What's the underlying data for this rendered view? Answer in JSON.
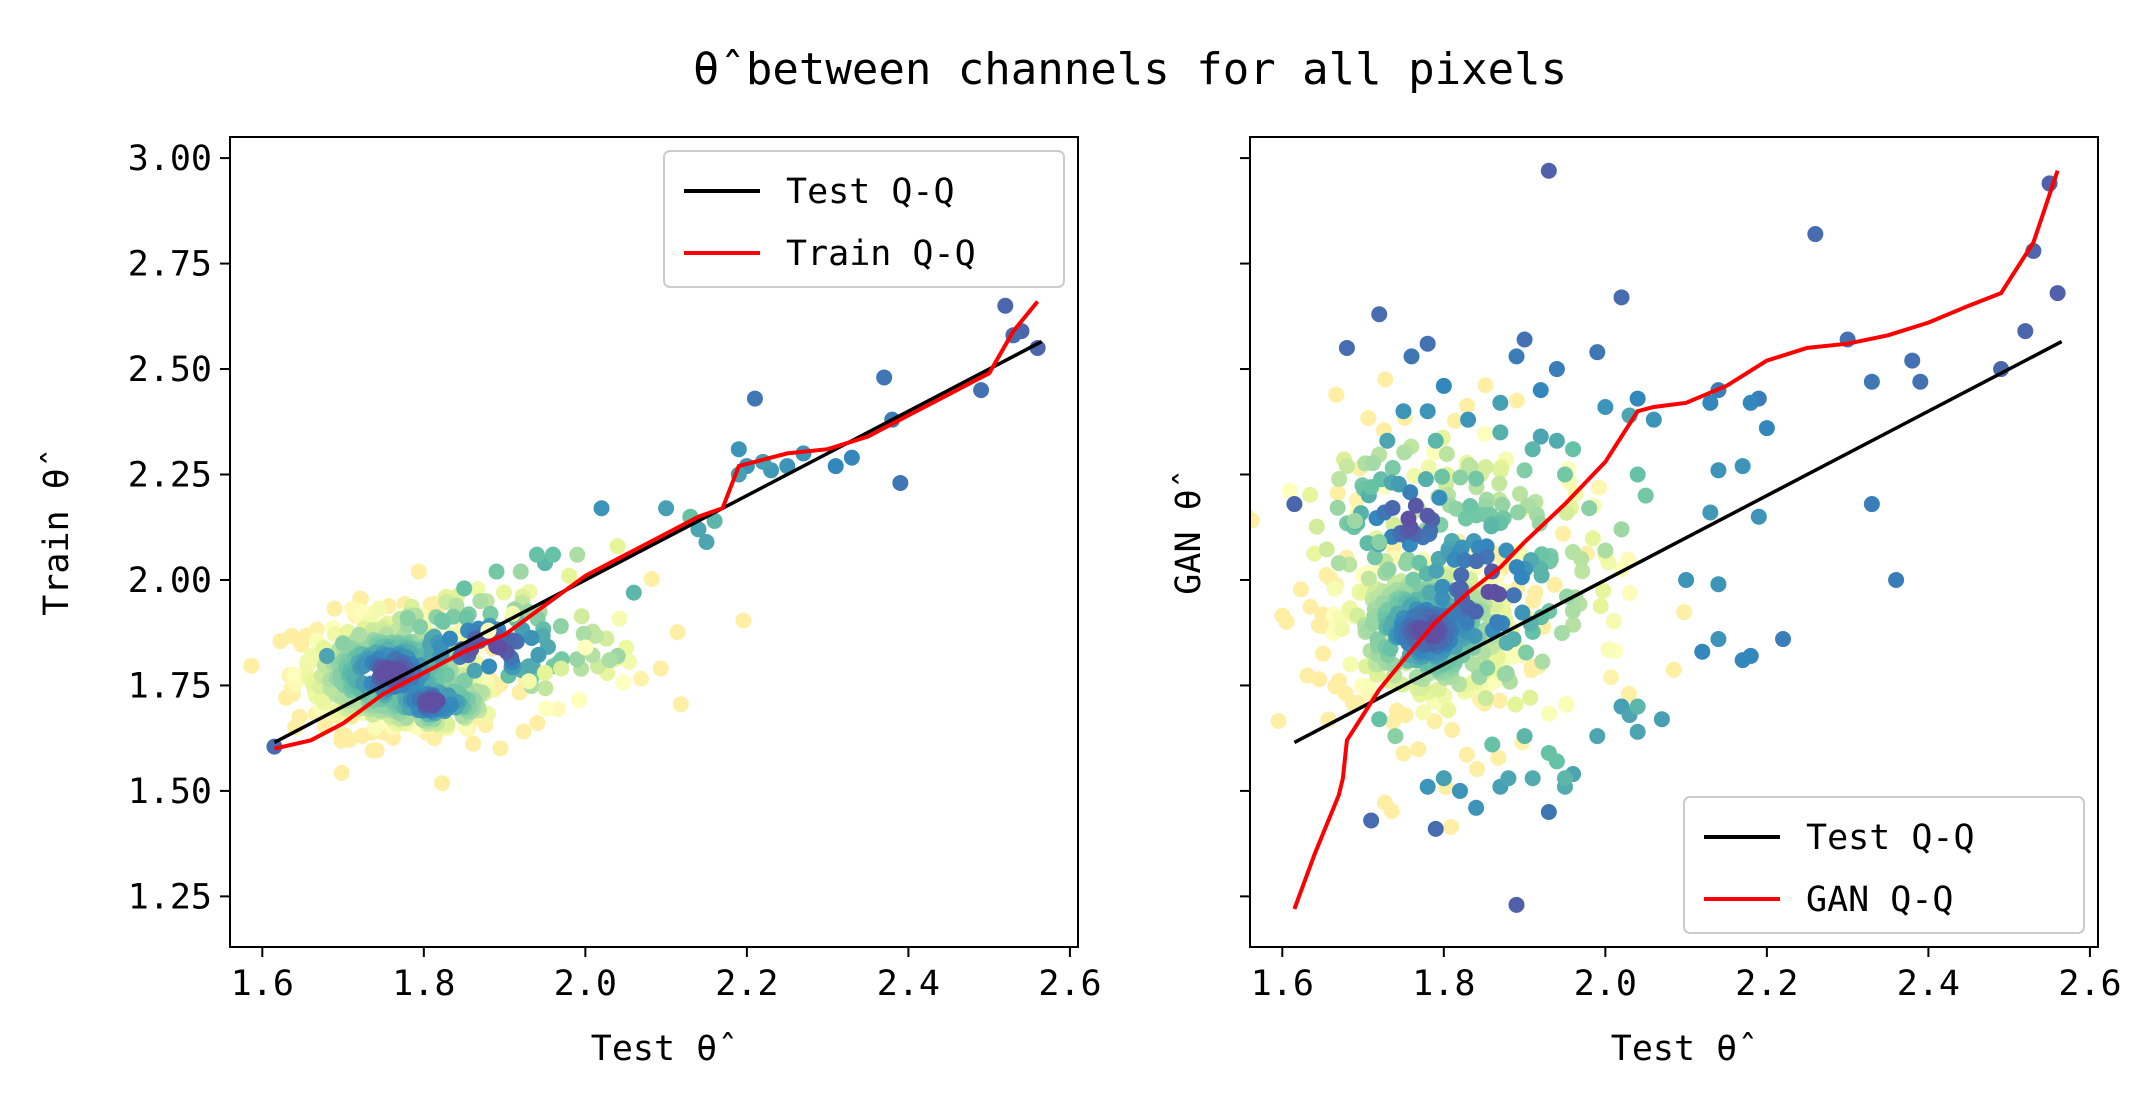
{
  "figure": {
    "title": "θ̂ between channels for all pixels"
  },
  "chart_data": [
    {
      "type": "scatter",
      "xlabel": "Test θ̂",
      "ylabel": "Train θ̂",
      "xlim": [
        1.56,
        2.61
      ],
      "ylim": [
        1.13,
        3.05
      ],
      "xticks": [
        "1.6",
        "1.8",
        "2.0",
        "2.2",
        "2.4",
        "2.6"
      ],
      "yticks": [
        "1.25",
        "1.50",
        "1.75",
        "2.00",
        "2.25",
        "2.50",
        "2.75",
        "3.00"
      ],
      "legend_position": "top-right",
      "legend": [
        "Test Q-Q",
        "Train Q-Q"
      ],
      "reference_line": {
        "name": "Test Q-Q",
        "color": "#000000",
        "x": [
          1.615,
          2.565
        ],
        "y": [
          1.615,
          2.565
        ]
      },
      "qq_line": {
        "name": "Train Q-Q",
        "color": "#ff0000",
        "x": [
          1.615,
          1.66,
          1.7,
          1.75,
          1.8,
          1.85,
          1.9,
          1.95,
          2.0,
          2.05,
          2.1,
          2.14,
          2.17,
          2.19,
          2.21,
          2.25,
          2.3,
          2.35,
          2.4,
          2.45,
          2.5,
          2.53,
          2.56
        ],
        "y": [
          1.6,
          1.62,
          1.66,
          1.73,
          1.78,
          1.83,
          1.87,
          1.94,
          2.01,
          2.06,
          2.11,
          2.15,
          2.17,
          2.27,
          2.28,
          2.3,
          2.31,
          2.34,
          2.39,
          2.44,
          2.49,
          2.59,
          2.66
        ]
      },
      "points": [
        [
          1.615,
          1.605,
          0.95
        ],
        [
          1.68,
          1.82,
          0.85
        ],
        [
          1.7,
          1.85,
          0.75
        ],
        [
          1.72,
          1.87,
          0.7
        ],
        [
          1.78,
          1.91,
          0.75
        ],
        [
          1.85,
          1.98,
          0.8
        ],
        [
          1.87,
          1.95,
          0.7
        ],
        [
          1.89,
          2.02,
          0.78
        ],
        [
          1.92,
          2.02,
          0.72
        ],
        [
          1.94,
          2.06,
          0.8
        ],
        [
          1.95,
          2.04,
          0.82
        ],
        [
          1.96,
          2.06,
          0.8
        ],
        [
          1.99,
          2.06,
          0.7
        ],
        [
          2.02,
          2.17,
          0.88
        ],
        [
          2.04,
          2.08,
          0.6
        ],
        [
          2.03,
          1.81,
          0.7
        ],
        [
          2.04,
          1.82,
          0.72
        ],
        [
          2.06,
          1.97,
          0.82
        ],
        [
          2.1,
          2.17,
          0.86
        ],
        [
          2.13,
          2.15,
          0.8
        ],
        [
          2.14,
          2.12,
          0.85
        ],
        [
          2.15,
          2.09,
          0.85
        ],
        [
          2.16,
          2.14,
          0.82
        ],
        [
          2.19,
          2.31,
          0.88
        ],
        [
          2.19,
          2.25,
          0.86
        ],
        [
          2.2,
          2.27,
          0.88
        ],
        [
          2.21,
          2.43,
          0.93
        ],
        [
          2.22,
          2.28,
          0.86
        ],
        [
          2.23,
          2.26,
          0.87
        ],
        [
          2.25,
          2.27,
          0.88
        ],
        [
          2.27,
          2.3,
          0.88
        ],
        [
          2.31,
          2.27,
          0.9
        ],
        [
          2.33,
          2.29,
          0.9
        ],
        [
          2.37,
          2.48,
          0.93
        ],
        [
          2.39,
          2.23,
          0.93
        ],
        [
          2.38,
          2.38,
          0.92
        ],
        [
          2.49,
          2.45,
          0.94
        ],
        [
          2.52,
          2.65,
          0.96
        ],
        [
          2.54,
          2.59,
          0.96
        ],
        [
          2.56,
          2.55,
          0.96
        ],
        [
          2.53,
          2.58,
          0.95
        ],
        [
          1.93,
          1.76,
          0.55
        ],
        [
          1.95,
          1.78,
          0.6
        ],
        [
          1.97,
          1.79,
          0.62
        ],
        [
          1.91,
          1.92,
          0.55
        ],
        [
          2.0,
          1.84,
          0.5
        ],
        [
          1.88,
          1.88,
          0.5
        ],
        [
          1.98,
          2.01,
          0.6
        ]
      ],
      "density_clusters": [
        {
          "x": 1.76,
          "y": 1.78,
          "sx": 0.06,
          "sy": 0.07,
          "n": 360
        },
        {
          "x": 1.81,
          "y": 1.71,
          "sx": 0.045,
          "sy": 0.035,
          "n": 160
        },
        {
          "x": 1.88,
          "y": 1.84,
          "sx": 0.1,
          "sy": 0.08,
          "n": 140
        }
      ]
    },
    {
      "type": "scatter",
      "xlabel": "Test θ̂",
      "ylabel": "GAN θ̂",
      "xlim": [
        1.56,
        2.61
      ],
      "ylim": [
        1.13,
        3.05
      ],
      "xticks": [
        "1.6",
        "1.8",
        "2.0",
        "2.2",
        "2.4",
        "2.6"
      ],
      "yticks": [
        "",
        "",
        "",
        "",
        "",
        "",
        "",
        ""
      ],
      "legend_position": "bottom-right",
      "legend": [
        "Test Q-Q",
        "GAN Q-Q"
      ],
      "reference_line": {
        "name": "Test Q-Q",
        "color": "#000000",
        "x": [
          1.615,
          2.565
        ],
        "y": [
          1.615,
          2.565
        ]
      },
      "qq_line": {
        "name": "GAN Q-Q",
        "color": "#ff0000",
        "x": [
          1.615,
          1.64,
          1.67,
          1.675,
          1.68,
          1.7,
          1.72,
          1.75,
          1.79,
          1.83,
          1.87,
          1.9,
          1.95,
          2.0,
          2.02,
          2.04,
          2.06,
          2.1,
          2.15,
          2.2,
          2.25,
          2.3,
          2.35,
          2.4,
          2.45,
          2.49,
          2.53,
          2.56
        ],
        "y": [
          1.22,
          1.35,
          1.49,
          1.53,
          1.62,
          1.68,
          1.74,
          1.81,
          1.9,
          1.97,
          2.03,
          2.09,
          2.18,
          2.28,
          2.34,
          2.4,
          2.41,
          2.42,
          2.46,
          2.52,
          2.55,
          2.56,
          2.58,
          2.61,
          2.65,
          2.68,
          2.8,
          2.97
        ]
      },
      "points": [
        [
          1.615,
          2.18,
          0.96
        ],
        [
          1.68,
          2.55,
          0.95
        ],
        [
          1.72,
          2.63,
          0.95
        ],
        [
          1.76,
          2.53,
          0.93
        ],
        [
          1.78,
          2.56,
          0.94
        ],
        [
          1.75,
          2.4,
          0.88
        ],
        [
          1.78,
          2.4,
          0.88
        ],
        [
          1.8,
          2.46,
          0.9
        ],
        [
          1.83,
          2.38,
          0.88
        ],
        [
          1.73,
          2.33,
          0.85
        ],
        [
          1.79,
          2.33,
          0.82
        ],
        [
          1.9,
          2.57,
          0.94
        ],
        [
          1.89,
          2.53,
          0.92
        ],
        [
          1.92,
          2.45,
          0.9
        ],
        [
          1.94,
          2.5,
          0.92
        ],
        [
          1.87,
          2.42,
          0.86
        ],
        [
          1.93,
          2.97,
          0.97
        ],
        [
          1.99,
          2.54,
          0.93
        ],
        [
          2.02,
          2.67,
          0.95
        ],
        [
          2.0,
          2.41,
          0.88
        ],
        [
          2.04,
          2.43,
          0.9
        ],
        [
          2.03,
          2.39,
          0.85
        ],
        [
          2.06,
          2.38,
          0.88
        ],
        [
          2.13,
          2.42,
          0.9
        ],
        [
          2.14,
          2.45,
          0.92
        ],
        [
          2.18,
          2.42,
          0.9
        ],
        [
          2.19,
          2.43,
          0.92
        ],
        [
          2.2,
          2.36,
          0.9
        ],
        [
          2.14,
          2.26,
          0.88
        ],
        [
          2.17,
          2.27,
          0.88
        ],
        [
          2.13,
          2.16,
          0.87
        ],
        [
          2.19,
          2.15,
          0.88
        ],
        [
          2.26,
          2.82,
          0.95
        ],
        [
          2.3,
          2.57,
          0.94
        ],
        [
          2.33,
          2.47,
          0.93
        ],
        [
          2.38,
          2.52,
          0.94
        ],
        [
          2.39,
          2.47,
          0.94
        ],
        [
          2.33,
          2.18,
          0.92
        ],
        [
          2.36,
          2.0,
          0.92
        ],
        [
          2.1,
          2.0,
          0.88
        ],
        [
          2.14,
          1.99,
          0.88
        ],
        [
          2.12,
          1.83,
          0.9
        ],
        [
          2.14,
          1.86,
          0.88
        ],
        [
          2.17,
          1.81,
          0.9
        ],
        [
          2.18,
          1.82,
          0.9
        ],
        [
          2.22,
          1.86,
          0.92
        ],
        [
          2.49,
          2.5,
          0.96
        ],
        [
          2.52,
          2.59,
          0.96
        ],
        [
          2.53,
          2.78,
          0.96
        ],
        [
          2.55,
          2.94,
          0.97
        ],
        [
          2.56,
          2.68,
          0.97
        ],
        [
          1.71,
          1.43,
          0.95
        ],
        [
          1.79,
          1.41,
          0.95
        ],
        [
          1.89,
          1.23,
          0.97
        ],
        [
          1.93,
          1.45,
          0.93
        ],
        [
          1.78,
          1.51,
          0.88
        ],
        [
          1.8,
          1.53,
          0.86
        ],
        [
          1.82,
          1.5,
          0.88
        ],
        [
          1.84,
          1.46,
          0.88
        ],
        [
          1.87,
          1.51,
          0.86
        ],
        [
          1.88,
          1.53,
          0.85
        ],
        [
          1.91,
          1.53,
          0.84
        ],
        [
          1.95,
          1.51,
          0.84
        ],
        [
          1.96,
          1.54,
          0.85
        ],
        [
          1.94,
          1.57,
          0.8
        ],
        [
          1.95,
          1.53,
          0.82
        ],
        [
          1.99,
          1.63,
          0.85
        ],
        [
          2.02,
          1.7,
          0.86
        ],
        [
          2.03,
          1.68,
          0.85
        ],
        [
          2.04,
          1.64,
          0.85
        ],
        [
          2.07,
          1.67,
          0.86
        ],
        [
          2.04,
          1.7,
          0.82
        ],
        [
          1.72,
          1.67,
          0.8
        ],
        [
          1.74,
          1.63,
          0.75
        ],
        [
          1.86,
          1.61,
          0.8
        ],
        [
          1.9,
          1.63,
          0.82
        ],
        [
          1.93,
          1.59,
          0.8
        ],
        [
          1.71,
          2.22,
          0.8
        ],
        [
          1.69,
          2.14,
          0.72
        ],
        [
          1.72,
          2.09,
          0.75
        ],
        [
          1.67,
          2.04,
          0.7
        ],
        [
          1.84,
          2.24,
          0.78
        ],
        [
          1.9,
          2.26,
          0.76
        ],
        [
          1.95,
          2.25,
          0.78
        ],
        [
          1.98,
          2.17,
          0.75
        ],
        [
          2.02,
          2.12,
          0.72
        ],
        [
          2.05,
          2.2,
          0.78
        ],
        [
          2.04,
          2.25,
          0.8
        ],
        [
          1.97,
          2.05,
          0.68
        ],
        [
          2.0,
          2.07,
          0.7
        ],
        [
          1.91,
          2.31,
          0.82
        ],
        [
          1.94,
          2.33,
          0.84
        ],
        [
          1.92,
          2.34,
          0.85
        ],
        [
          1.87,
          2.35,
          0.83
        ],
        [
          1.96,
          2.31,
          0.8
        ]
      ],
      "density_clusters": [
        {
          "x": 1.78,
          "y": 1.88,
          "sx": 0.06,
          "sy": 0.09,
          "n": 340
        },
        {
          "x": 1.85,
          "y": 1.98,
          "sx": 0.09,
          "sy": 0.18,
          "n": 200
        },
        {
          "x": 1.76,
          "y": 2.15,
          "sx": 0.08,
          "sy": 0.12,
          "n": 90
        }
      ]
    }
  ]
}
